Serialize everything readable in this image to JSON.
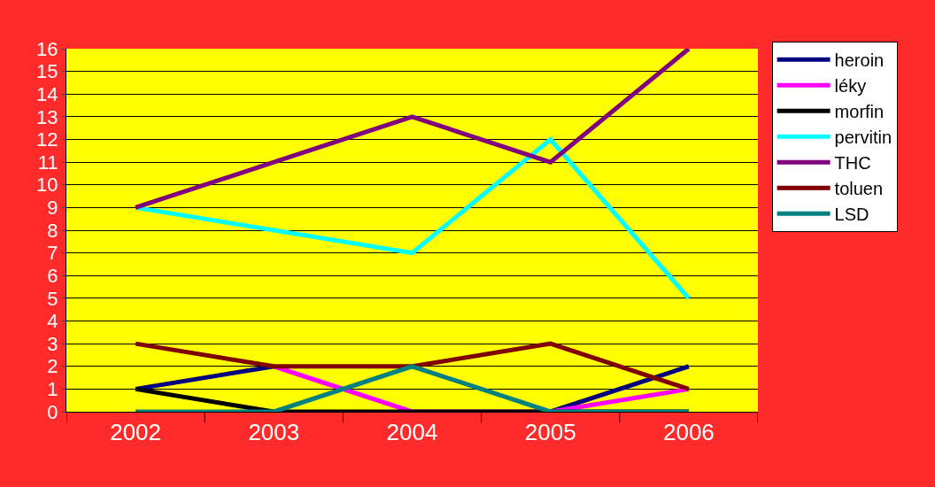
{
  "chart_data": {
    "type": "line",
    "categories": [
      "2002",
      "2003",
      "2004",
      "2005",
      "2006"
    ],
    "series": [
      {
        "name": "heroin",
        "color": "#000080",
        "values": [
          1,
          2,
          null,
          0,
          2
        ]
      },
      {
        "name": "léky",
        "color": "#ff00ff",
        "values": [
          null,
          2,
          0,
          0,
          1
        ]
      },
      {
        "name": "morfin",
        "color": "#000000",
        "values": [
          1,
          0,
          0,
          0,
          0
        ]
      },
      {
        "name": "pervitin",
        "color": "#00ffff",
        "values": [
          9,
          8,
          7,
          12,
          5
        ]
      },
      {
        "name": "THC",
        "color": "#800080",
        "values": [
          9,
          11,
          13,
          11,
          16
        ]
      },
      {
        "name": "toluen",
        "color": "#800000",
        "values": [
          3,
          2,
          2,
          3,
          1
        ]
      },
      {
        "name": "LSD",
        "color": "#008080",
        "values": [
          0,
          0,
          2,
          0,
          0
        ]
      }
    ],
    "ylim": [
      0,
      16
    ],
    "yticks": [
      0,
      1,
      2,
      3,
      4,
      5,
      6,
      7,
      8,
      9,
      10,
      11,
      12,
      13,
      14,
      15,
      16
    ],
    "grid": "y",
    "legend": "right",
    "line_style": "solid"
  }
}
